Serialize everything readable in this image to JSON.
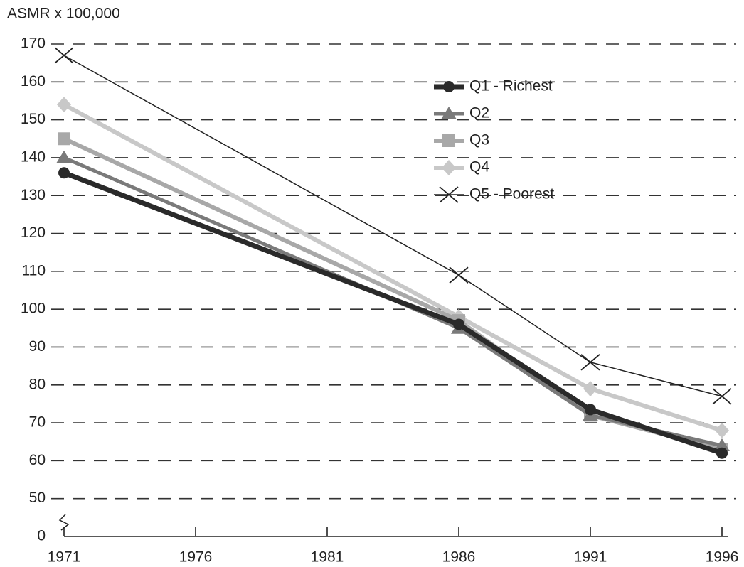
{
  "chart_data": {
    "type": "line",
    "y_axis_title": "ASMR x 100,000",
    "x": [
      1971,
      1986,
      1991,
      1996
    ],
    "xlim": [
      1971,
      1996
    ],
    "xticks": [
      1971,
      1976,
      1981,
      1986,
      1991,
      1996
    ],
    "ylim": [
      0,
      170
    ],
    "yticks": [
      0,
      50,
      60,
      70,
      80,
      90,
      100,
      110,
      120,
      130,
      140,
      150,
      160,
      170
    ],
    "y_axis_break": true,
    "grid": true,
    "legend": "upper right",
    "series": [
      {
        "name": "Q1 - Richest",
        "color": "#2a2a2a",
        "marker": "circle",
        "values": [
          136,
          96,
          73.5,
          62
        ]
      },
      {
        "name": "Q2",
        "color": "#7a7a7a",
        "marker": "triangle",
        "values": [
          140,
          95,
          72,
          64
        ]
      },
      {
        "name": "Q3",
        "color": "#a8a8a8",
        "marker": "square",
        "values": [
          145,
          97,
          72,
          63
        ]
      },
      {
        "name": "Q4",
        "color": "#c8c8c8",
        "marker": "diamond",
        "values": [
          154,
          98,
          79,
          68
        ]
      },
      {
        "name": "Q5 - Poorest",
        "color": "#222222",
        "marker": "x",
        "values": [
          167,
          109,
          86,
          77
        ]
      }
    ]
  }
}
